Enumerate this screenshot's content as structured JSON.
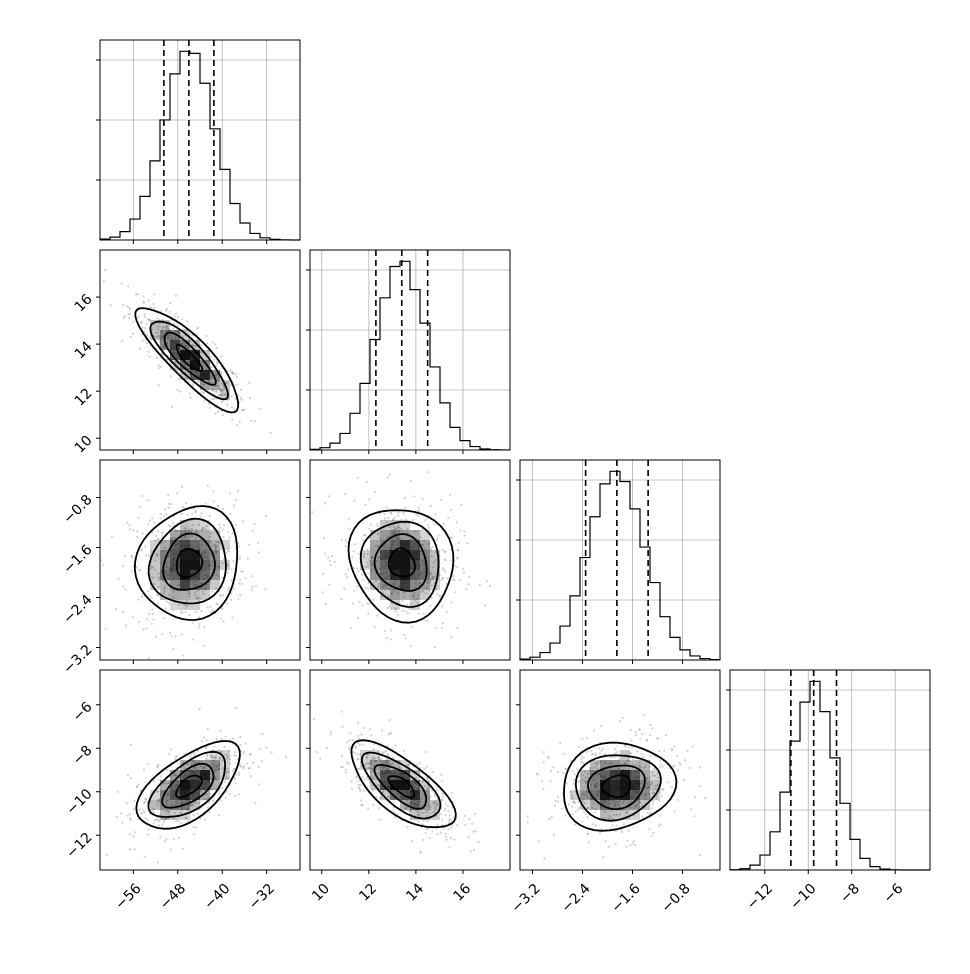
{
  "chart_data": {
    "type": "scatter",
    "title": "",
    "description_free": true,
    "parameters": [
      {
        "mean": -46.0,
        "sd": 4.6,
        "range": [
          -62,
          -26
        ],
        "ticks": [
          -56,
          -48,
          -40,
          -32
        ],
        "quantiles": [
          -50.5,
          -46.0,
          -41.5
        ]
      },
      {
        "mean": 13.4,
        "sd": 1.1,
        "range": [
          9.5,
          18
        ],
        "ticks": [
          10,
          12,
          14,
          16
        ],
        "quantiles": [
          12.3,
          13.4,
          14.5
        ]
      },
      {
        "mean": -1.85,
        "sd": 0.45,
        "range": [
          -3.4,
          -0.2
        ],
        "ticks": [
          -3.2,
          -2.4,
          -1.6,
          -0.8
        ],
        "quantiles": [
          -2.35,
          -1.85,
          -1.35
        ]
      },
      {
        "mean": -9.75,
        "sd": 1.0,
        "range": [
          -13.6,
          -4.4
        ],
        "ticks": [
          -12,
          -10,
          -8,
          -6
        ],
        "quantiles": [
          -10.8,
          -9.75,
          -8.7
        ]
      }
    ],
    "correlations": [
      [
        1,
        -0.85,
        0.1,
        0.6
      ],
      [
        -0.85,
        1,
        -0.1,
        -0.7
      ],
      [
        0.1,
        -0.1,
        1,
        0.1
      ],
      [
        0.6,
        -0.7,
        0.1,
        1
      ]
    ],
    "contour_levels": [
      0.5,
      1.0,
      1.5,
      2.0
    ],
    "grid": true,
    "colors": {
      "points": "#9a9a9a",
      "heat": "#000000",
      "lines": "#000000"
    }
  }
}
